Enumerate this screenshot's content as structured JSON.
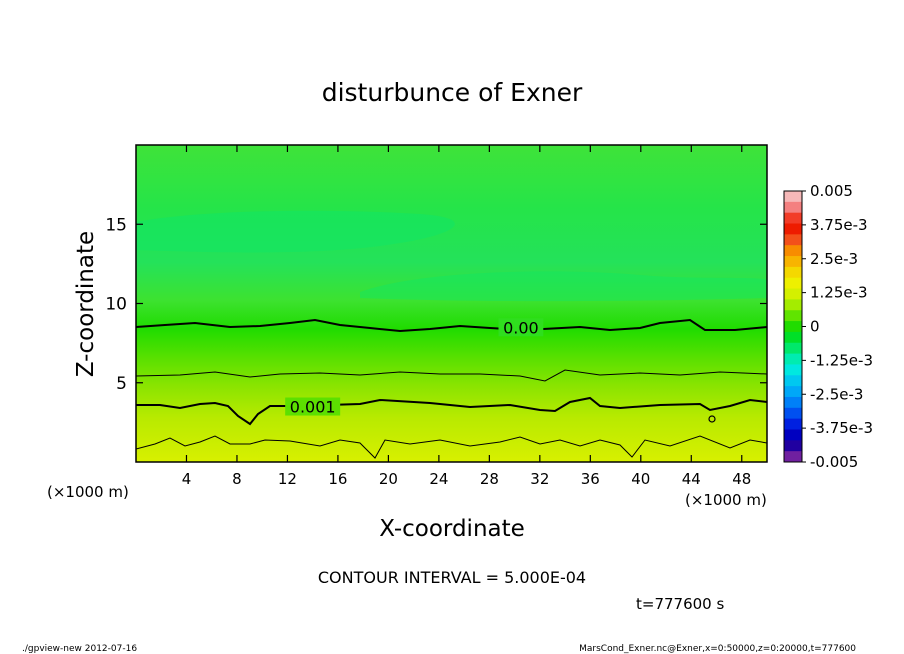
{
  "chart_data": {
    "type": "heatmap",
    "title": "disturbunce of Exner",
    "xlabel": "X-coordinate",
    "ylabel": "Z-coordinate",
    "x_unit_left": "(×1000 m)",
    "x_unit_right": "(×1000 m)",
    "xlim": [
      0,
      50
    ],
    "ylim": [
      0,
      20
    ],
    "x_ticks": [
      4,
      8,
      12,
      16,
      20,
      24,
      28,
      32,
      36,
      40,
      44,
      48
    ],
    "y_ticks": [
      5,
      10,
      15
    ],
    "colorbar": {
      "range": [
        -0.005,
        0.005
      ],
      "labels": [
        "0.005",
        "3.75e-3",
        "2.5e-3",
        "1.25e-3",
        "0",
        "-1.25e-3",
        "-2.5e-3",
        "-3.75e-3",
        "-0.005"
      ],
      "colors": [
        "#f6b8b8",
        "#f48080",
        "#f23c28",
        "#ee1c00",
        "#f3501a",
        "#f88c00",
        "#f8b400",
        "#f4d800",
        "#eef000",
        "#d4f000",
        "#a4ec00",
        "#60e400",
        "#20dc00",
        "#00e028",
        "#00e86a",
        "#00ecb0",
        "#00e8e0",
        "#00c8f0",
        "#00a8f8",
        "#0080f8",
        "#0050f0",
        "#0020e0",
        "#0000c0",
        "#2000a0",
        "#7020a0"
      ]
    },
    "contour_labels": [
      {
        "text": "0.00",
        "x": 30.5,
        "z": 8.5
      },
      {
        "text": "0.001",
        "x": 14.0,
        "z": 3.5
      }
    ],
    "contour_interval": "CONTOUR INTERVAL = 5.000E-04",
    "time_label": "t=777600 s",
    "footer_left": "./gpview-new   2012-07-16",
    "footer_right": "MarsCond_Exner.nc@Exner,x=0:50000,z=0:20000,t=777600"
  }
}
